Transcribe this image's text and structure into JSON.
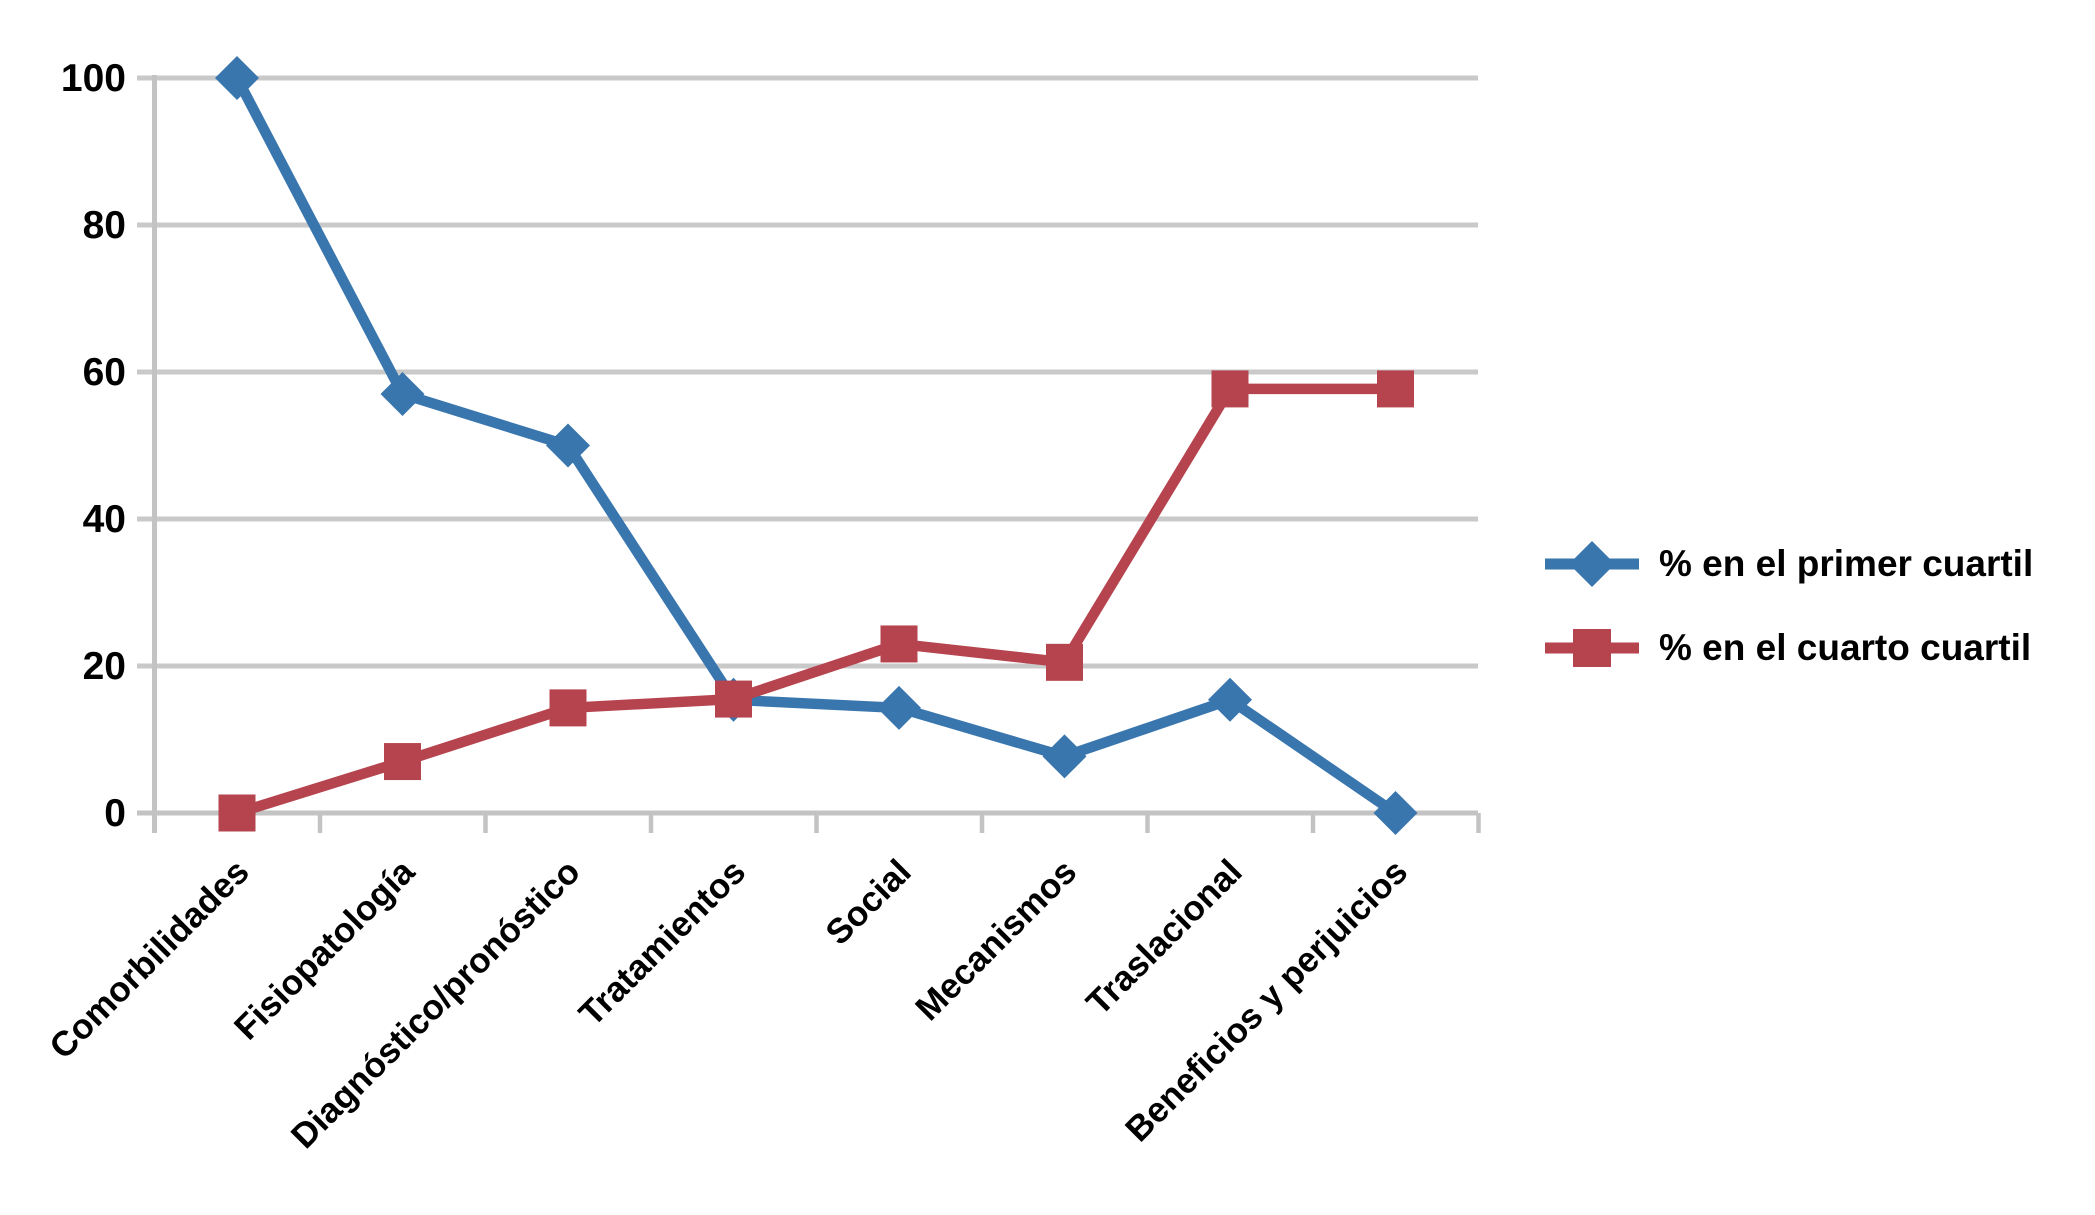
{
  "chart_data": {
    "type": "line",
    "title": "",
    "xlabel": "",
    "ylabel": "",
    "categories": [
      "Comorbilidades",
      "Fisiopatología",
      "Diagnóstico/pronóstico",
      "Tratamientos",
      "Social",
      "Mecanismos",
      "Traslacional",
      "Beneficios y perjuicios"
    ],
    "series": [
      {
        "name": "% en el primer cuartil",
        "marker": "diamond",
        "color": "#3A76AE",
        "values": [
          100,
          57,
          50,
          15.4,
          14.3,
          7.7,
          15.4,
          0
        ]
      },
      {
        "name": "% en el cuarto cuartil",
        "marker": "square",
        "color": "#B6444E",
        "values": [
          0,
          7,
          14.3,
          15.5,
          23,
          20.5,
          57.7,
          57.7
        ]
      }
    ],
    "y_ticks": [
      0,
      20,
      40,
      60,
      80,
      100
    ],
    "ylim": [
      0,
      100
    ],
    "grid": "horizontal",
    "legend_position": "right",
    "colors": {
      "gridline": "#C9C9C9",
      "axis": "#C3C3C3",
      "tick": "#C3C3C3",
      "text": "#000000"
    }
  }
}
